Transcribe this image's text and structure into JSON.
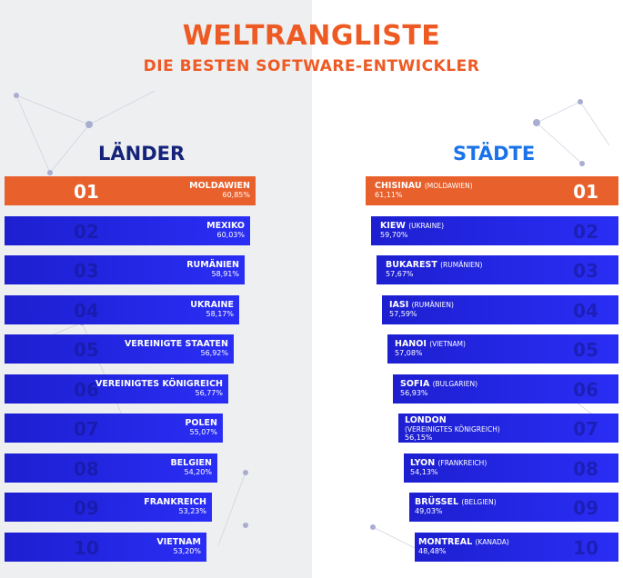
{
  "header": {
    "title": "WELTRANGLISTE",
    "subtitle": "DIE BESTEN SOFTWARE-ENTWICKLER"
  },
  "colors": {
    "accent": "#ee5a24",
    "bar": "#2426e6",
    "navy": "#15237a",
    "blue": "#1a73e8"
  },
  "countries": {
    "heading": "LÄNDER",
    "items": [
      {
        "rank": "01",
        "name": "MOLDAWIEN",
        "pct": "60,85%"
      },
      {
        "rank": "02",
        "name": "MEXIKO",
        "pct": "60,03%"
      },
      {
        "rank": "03",
        "name": "RUMÄNIEN",
        "pct": "58,91%"
      },
      {
        "rank": "04",
        "name": "UKRAINE",
        "pct": "58,17%"
      },
      {
        "rank": "05",
        "name": "VEREINIGTE STAATEN",
        "pct": "56,92%"
      },
      {
        "rank": "06",
        "name": "VEREINIGTES KÖNIGREICH",
        "pct": "56,77%"
      },
      {
        "rank": "07",
        "name": "POLEN",
        "pct": "55,07%"
      },
      {
        "rank": "08",
        "name": "BELGIEN",
        "pct": "54,20%"
      },
      {
        "rank": "09",
        "name": "FRANKREICH",
        "pct": "53,23%"
      },
      {
        "rank": "10",
        "name": "VIETNAM",
        "pct": "53,20%"
      }
    ]
  },
  "cities": {
    "heading": "STÄDTE",
    "items": [
      {
        "rank": "01",
        "name": "CHISINAU",
        "country": "(MOLDAWIEN)",
        "pct": "61,11%"
      },
      {
        "rank": "02",
        "name": "KIEW",
        "country": "(UKRAINE)",
        "pct": "59,70%"
      },
      {
        "rank": "03",
        "name": "BUKAREST",
        "country": "(RUMÄNIEN)",
        "pct": "57,67%"
      },
      {
        "rank": "04",
        "name": "IASI",
        "country": "(RUMÄNIEN)",
        "pct": "57,59%"
      },
      {
        "rank": "05",
        "name": "HANOI",
        "country": "(VIETNAM)",
        "pct": "57,08%"
      },
      {
        "rank": "06",
        "name": "SOFIA",
        "country": "(BULGARIEN)",
        "pct": "56,93%"
      },
      {
        "rank": "07",
        "name": "LONDON",
        "country": "(VEREINIGTES KÖNIGREICH)",
        "pct": "56,15%"
      },
      {
        "rank": "08",
        "name": "LYON",
        "country": "(FRANKREICH)",
        "pct": "54,13%"
      },
      {
        "rank": "09",
        "name": "BRÜSSEL",
        "country": "(BELGIEN)",
        "pct": "49,03%"
      },
      {
        "rank": "10",
        "name": "MONTREAL",
        "country": "(KANADA)",
        "pct": "48,48%"
      }
    ]
  }
}
